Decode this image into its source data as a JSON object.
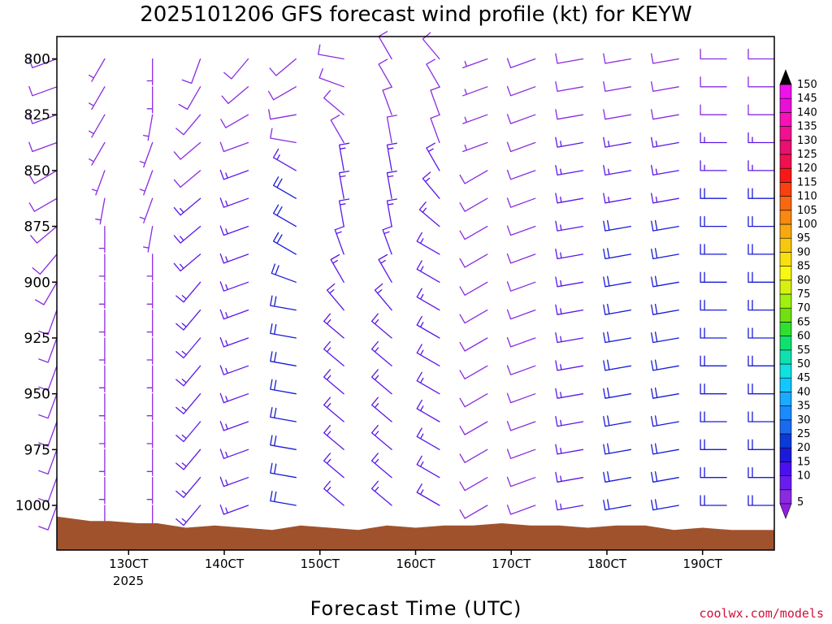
{
  "chart_data": {
    "type": "wind-barb-profile",
    "title": "2025101206 GFS forecast wind profile (kt) for KEYW",
    "xlabel": "Forecast Time (UTC)",
    "ylabel": "",
    "credit": "coolwx.com/models",
    "y_axis": {
      "unit": "hPa",
      "ylim": [
        790,
        1020
      ],
      "ticks": [
        800,
        825,
        850,
        875,
        900,
        925,
        950,
        975,
        1000
      ],
      "tick_labels": [
        "800",
        "825",
        "850",
        "875",
        "900",
        "925",
        "950",
        "975",
        "1000"
      ]
    },
    "x_axis": {
      "unit": "days (Oct 2025, UTC)",
      "xlim": [
        12.25,
        19.75
      ],
      "ticks": [
        13,
        14,
        15,
        16,
        17,
        18,
        19
      ],
      "tick_labels": [
        "130CT",
        "140CT",
        "150CT",
        "160CT",
        "170CT",
        "180CT",
        "190CT"
      ],
      "year_label": "2025"
    },
    "levels_hpa": [
      800,
      812.5,
      825,
      837.5,
      850,
      862.5,
      875,
      887.5,
      900,
      912.5,
      925,
      937.5,
      950,
      962.5,
      975,
      987.5,
      1000
    ],
    "times": [
      12.25,
      12.75,
      13.25,
      13.75,
      14.25,
      14.75,
      15.25,
      15.75,
      16.25,
      16.75,
      17.25,
      17.75,
      18.25,
      18.75,
      19.25,
      19.75
    ],
    "wind_speed_kt": [
      [
        10,
        5,
        5,
        10,
        10,
        10,
        10,
        10,
        10,
        5,
        10,
        10,
        10,
        10,
        10,
        10
      ],
      [
        10,
        5,
        5,
        10,
        10,
        10,
        10,
        10,
        10,
        5,
        10,
        10,
        10,
        10,
        10,
        10
      ],
      [
        10,
        5,
        5,
        10,
        10,
        10,
        10,
        10,
        10,
        5,
        10,
        10,
        10,
        10,
        10,
        10
      ],
      [
        10,
        5,
        5,
        10,
        10,
        10,
        10,
        10,
        10,
        5,
        10,
        15,
        15,
        15,
        15,
        15
      ],
      [
        10,
        5,
        5,
        10,
        15,
        15,
        15,
        15,
        15,
        10,
        10,
        15,
        15,
        15,
        15,
        15
      ],
      [
        10,
        5,
        5,
        15,
        15,
        20,
        15,
        15,
        15,
        10,
        10,
        15,
        15,
        15,
        20,
        20
      ],
      [
        10,
        5,
        5,
        15,
        15,
        20,
        15,
        15,
        15,
        10,
        10,
        15,
        20,
        20,
        20,
        20
      ],
      [
        10,
        5,
        5,
        15,
        15,
        20,
        15,
        15,
        15,
        10,
        10,
        15,
        20,
        20,
        20,
        20
      ],
      [
        10,
        5,
        5,
        15,
        15,
        20,
        15,
        15,
        15,
        10,
        10,
        15,
        20,
        20,
        20,
        20
      ],
      [
        10,
        5,
        5,
        15,
        15,
        20,
        15,
        15,
        15,
        10,
        10,
        15,
        20,
        20,
        20,
        20
      ],
      [
        10,
        5,
        5,
        15,
        15,
        20,
        15,
        15,
        15,
        10,
        10,
        15,
        20,
        20,
        20,
        20
      ],
      [
        10,
        5,
        5,
        15,
        15,
        20,
        15,
        15,
        15,
        10,
        10,
        15,
        20,
        20,
        20,
        20
      ],
      [
        10,
        5,
        5,
        15,
        15,
        20,
        15,
        15,
        15,
        10,
        10,
        15,
        20,
        20,
        20,
        20
      ],
      [
        10,
        5,
        5,
        15,
        15,
        20,
        15,
        15,
        15,
        10,
        10,
        15,
        20,
        20,
        20,
        20
      ],
      [
        10,
        5,
        5,
        15,
        15,
        20,
        15,
        15,
        15,
        10,
        10,
        15,
        20,
        20,
        20,
        20
      ],
      [
        10,
        5,
        5,
        15,
        15,
        20,
        15,
        15,
        15,
        10,
        10,
        15,
        20,
        20,
        20,
        20
      ],
      [
        10,
        5,
        5,
        15,
        15,
        20,
        15,
        15,
        15,
        10,
        10,
        15,
        20,
        20,
        20,
        20
      ]
    ],
    "wind_dir_deg": [
      [
        250,
        210,
        180,
        200,
        220,
        230,
        280,
        330,
        320,
        250,
        250,
        260,
        260,
        260,
        270,
        270
      ],
      [
        250,
        210,
        180,
        210,
        230,
        240,
        290,
        330,
        330,
        250,
        250,
        260,
        260,
        260,
        270,
        270
      ],
      [
        250,
        210,
        190,
        220,
        240,
        260,
        310,
        340,
        340,
        250,
        250,
        260,
        260,
        260,
        270,
        270
      ],
      [
        250,
        210,
        200,
        230,
        250,
        280,
        330,
        350,
        340,
        250,
        250,
        260,
        260,
        260,
        270,
        270
      ],
      [
        240,
        200,
        200,
        230,
        250,
        300,
        350,
        350,
        330,
        240,
        250,
        260,
        260,
        260,
        270,
        270
      ],
      [
        240,
        190,
        200,
        230,
        250,
        300,
        350,
        350,
        320,
        240,
        250,
        260,
        260,
        260,
        270,
        270
      ],
      [
        230,
        180,
        190,
        230,
        250,
        300,
        350,
        350,
        310,
        240,
        250,
        260,
        260,
        260,
        270,
        270
      ],
      [
        220,
        180,
        180,
        230,
        250,
        300,
        340,
        340,
        300,
        240,
        250,
        260,
        260,
        260,
        270,
        270
      ],
      [
        210,
        180,
        180,
        220,
        250,
        290,
        330,
        330,
        300,
        240,
        250,
        260,
        260,
        260,
        270,
        270
      ],
      [
        200,
        180,
        180,
        220,
        250,
        280,
        320,
        320,
        300,
        240,
        250,
        260,
        260,
        260,
        270,
        270
      ],
      [
        200,
        180,
        180,
        220,
        250,
        280,
        310,
        310,
        300,
        240,
        250,
        260,
        260,
        260,
        270,
        270
      ],
      [
        200,
        180,
        180,
        220,
        250,
        280,
        310,
        310,
        300,
        240,
        250,
        260,
        260,
        260,
        270,
        270
      ],
      [
        200,
        180,
        180,
        220,
        250,
        280,
        310,
        310,
        300,
        240,
        250,
        260,
        260,
        260,
        270,
        270
      ],
      [
        200,
        180,
        180,
        220,
        250,
        280,
        310,
        310,
        300,
        240,
        250,
        260,
        260,
        260,
        270,
        270
      ],
      [
        200,
        180,
        180,
        220,
        250,
        280,
        310,
        310,
        300,
        240,
        250,
        260,
        260,
        260,
        270,
        270
      ],
      [
        200,
        180,
        180,
        220,
        250,
        280,
        310,
        310,
        300,
        240,
        250,
        260,
        260,
        260,
        270,
        270
      ],
      [
        200,
        180,
        180,
        220,
        250,
        280,
        310,
        310,
        300,
        240,
        250,
        260,
        260,
        260,
        270,
        270
      ]
    ],
    "surface_pressure_hpa": {
      "times": [
        12.25,
        12.6,
        12.8,
        13.1,
        13.3,
        13.6,
        13.9,
        14.2,
        14.5,
        14.8,
        15.1,
        15.4,
        15.7,
        16.0,
        16.3,
        16.6,
        16.9,
        17.2,
        17.5,
        17.8,
        18.1,
        18.4,
        18.7,
        19.0,
        19.3,
        19.75
      ],
      "values": [
        1005,
        1007,
        1007,
        1008,
        1008,
        1010,
        1009,
        1010,
        1011,
        1009,
        1010,
        1011,
        1009,
        1010,
        1009,
        1009,
        1008,
        1009,
        1009,
        1010,
        1009,
        1009,
        1011,
        1010,
        1011,
        1011
      ]
    },
    "colorbar": {
      "values": [
        5,
        10,
        15,
        20,
        25,
        30,
        35,
        40,
        45,
        50,
        55,
        60,
        65,
        70,
        75,
        80,
        85,
        90,
        95,
        100,
        105,
        110,
        115,
        120,
        125,
        130,
        135,
        140,
        145,
        150
      ],
      "labels": [
        "5",
        "10",
        "15",
        "20",
        "25",
        "30",
        "35",
        "40",
        "45",
        "50",
        "55",
        "60",
        "65",
        "70",
        "75",
        "80",
        "85",
        "90",
        "95",
        "100",
        "105",
        "110",
        "115",
        "120",
        "125",
        "130",
        "135",
        "140",
        "145",
        "150"
      ],
      "colors": [
        "#8a2be2",
        "#6a1cf0",
        "#4a10f0",
        "#1a1ad8",
        "#0a3ad8",
        "#1a6af0",
        "#1a8aff",
        "#1aaaff",
        "#10c8ff",
        "#10e0e0",
        "#10e0b0",
        "#10e070",
        "#30e030",
        "#70e010",
        "#a0f010",
        "#d8f010",
        "#f8f810",
        "#f8e010",
        "#f8c810",
        "#f8a810",
        "#f88810",
        "#f86810",
        "#f84010",
        "#f81818",
        "#f01050",
        "#e81070",
        "#f01090",
        "#f810b8",
        "#e810d8",
        "#f010f0"
      ],
      "over_color": "#000000",
      "under_color": "#9020e0"
    },
    "colors": {
      "terrain": "#a0522d",
      "barb_slow": "#8a2be2",
      "barb_mid": "#5a18e8",
      "barb_fast": "#1a1ad8"
    }
  }
}
